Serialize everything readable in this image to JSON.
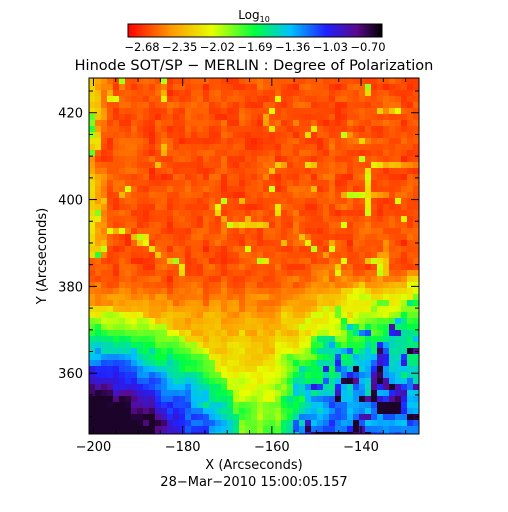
{
  "chart_data": {
    "type": "heatmap",
    "title": "Hinode SOT/SP − MERLIN : Degree of Polarization",
    "xlabel": "X (Arcseconds)",
    "ylabel": "Y (Arcseconds)",
    "timestamp": "28−Mar−2010 15:00:05.157",
    "xlim": [
      -201,
      -127
    ],
    "ylim": [
      346,
      428
    ],
    "x_ticks": [
      -200,
      -180,
      -160,
      -140
    ],
    "y_ticks": [
      360,
      380,
      400,
      420
    ],
    "x_tick_labels": [
      "−200",
      "−180",
      "−160",
      "−140"
    ],
    "y_tick_labels": [
      "360",
      "380",
      "400",
      "420"
    ],
    "colorbar": {
      "title_main": "Log",
      "title_sub": "10",
      "range": [
        -2.68,
        -0.7
      ],
      "tick_labels": [
        "−2.68",
        "−2.35",
        "−2.02",
        "−1.69",
        "−1.36",
        "−1.03",
        "−0.70"
      ],
      "colormap": "rainbow (red → yellow → green → cyan → blue → purple → black)"
    },
    "regions": [
      {
        "area": "upper half (y > ~385)",
        "log10_dop": -2.6
      },
      {
        "area": "lower right network (x > -160, y < 385)",
        "log10_dop": -1.6
      },
      {
        "area": "lower left (x < -185, y < 365)",
        "log10_dop": -0.85
      }
    ]
  }
}
